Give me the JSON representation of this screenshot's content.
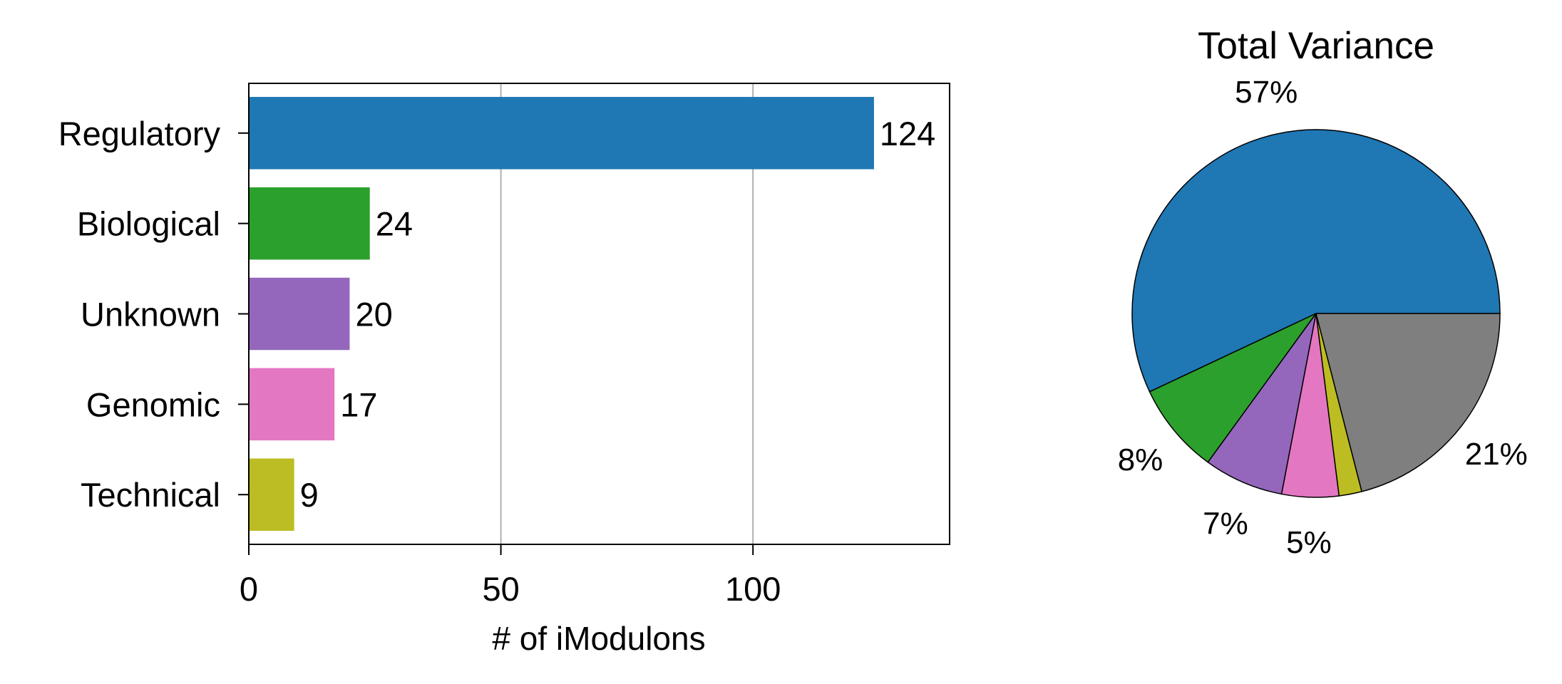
{
  "chart_data": [
    {
      "type": "bar",
      "orientation": "horizontal",
      "categories": [
        "Regulatory",
        "Biological",
        "Unknown",
        "Genomic",
        "Technical"
      ],
      "values": [
        124,
        24,
        20,
        17,
        9
      ],
      "value_labels": [
        "124",
        "24",
        "20",
        "17",
        "9"
      ],
      "colors": [
        "#1f77b4",
        "#2ca02c",
        "#9467bd",
        "#e377c2",
        "#bcbd22"
      ],
      "xlabel": "# of iModulons",
      "xlim": [
        0,
        139
      ],
      "xticks": [
        0,
        50,
        100
      ],
      "xtick_labels": [
        "0",
        "50",
        "100"
      ],
      "grid": "vertical",
      "grid_color": "#b0b0b0"
    },
    {
      "type": "pie",
      "title": "Total Variance",
      "values": [
        57,
        8,
        7,
        5,
        2,
        21
      ],
      "labels": [
        "57%",
        "8%",
        "7%",
        "5%",
        "",
        "21%"
      ],
      "colors": [
        "#1f77b4",
        "#2ca02c",
        "#9467bd",
        "#e377c2",
        "#bcbd22",
        "#7f7f7f"
      ],
      "start_angle_deg": 0,
      "direction": "counterclockwise"
    }
  ]
}
